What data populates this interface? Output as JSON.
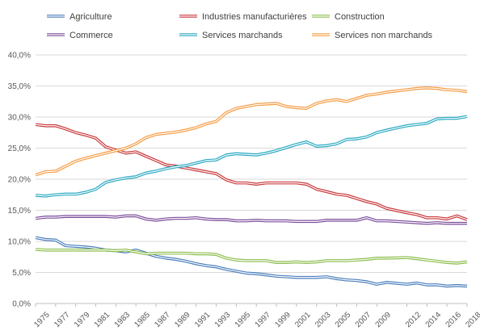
{
  "chart_data": {
    "type": "line",
    "title": "",
    "xlabel": "",
    "ylabel": "",
    "ylim": [
      0,
      40
    ],
    "y_ticks": [
      "0,0%",
      "5,0%",
      "10,0%",
      "15,0%",
      "20,0%",
      "25,0%",
      "30,0%",
      "35,0%",
      "40,0%"
    ],
    "x_tick_labels": [
      "1975",
      "1977",
      "1979",
      "1981",
      "1983",
      "1985",
      "1987",
      "1989",
      "1991",
      "1993",
      "1995",
      "1997",
      "1999",
      "2001",
      "2003",
      "2005",
      "2007",
      "2009",
      "2012",
      "2014",
      "2016",
      "2018"
    ],
    "grid": "horizontal",
    "legend_position": "top",
    "x": [
      "1975",
      "1976",
      "1977",
      "1978",
      "1979",
      "1980",
      "1981",
      "1982",
      "1983",
      "1984",
      "1985",
      "1986",
      "1987",
      "1988",
      "1989",
      "1990",
      "1991",
      "1992",
      "1993",
      "1994",
      "1995",
      "1996",
      "1997",
      "1998",
      "1999",
      "2000",
      "2001",
      "2002",
      "2003",
      "2004",
      "2005",
      "2006",
      "2007",
      "2008",
      "2009",
      "2010",
      "2012",
      "2013",
      "2014",
      "2015",
      "2016",
      "2017",
      "2018"
    ],
    "series": [
      {
        "name": "Agriculture",
        "color": "#4a7ebb",
        "values": [
          10.6,
          10.3,
          10.2,
          9.3,
          9.2,
          9.1,
          8.9,
          8.6,
          8.5,
          8.3,
          8.6,
          8.1,
          7.6,
          7.3,
          7.1,
          6.8,
          6.4,
          6.1,
          5.9,
          5.5,
          5.2,
          4.9,
          4.8,
          4.6,
          4.4,
          4.3,
          4.2,
          4.2,
          4.2,
          4.3,
          4.0,
          3.8,
          3.7,
          3.5,
          3.1,
          3.4,
          3.1,
          3.3,
          3.0,
          3.0,
          2.8,
          2.9,
          2.8
        ]
      },
      {
        "name": "Industries manufacturières",
        "color": "#c8373a",
        "values": [
          28.8,
          28.6,
          28.6,
          28.1,
          27.5,
          27.1,
          26.6,
          25.2,
          24.7,
          24.2,
          24.4,
          23.7,
          23.0,
          22.3,
          22.1,
          21.8,
          21.5,
          21.2,
          20.9,
          19.9,
          19.4,
          19.4,
          19.2,
          19.4,
          19.4,
          19.4,
          19.4,
          19.2,
          18.4,
          18.0,
          17.6,
          17.4,
          16.9,
          16.4,
          16.0,
          15.3,
          14.6,
          14.3,
          13.8,
          13.8,
          13.6,
          14.1,
          13.5
        ]
      },
      {
        "name": "Construction",
        "color": "#8dbd4c",
        "values": [
          8.7,
          8.6,
          8.6,
          8.6,
          8.6,
          8.6,
          8.6,
          8.6,
          8.5,
          8.6,
          8.3,
          8.0,
          8.1,
          8.1,
          8.1,
          8.1,
          8.0,
          8.0,
          7.9,
          7.3,
          7.0,
          6.9,
          6.9,
          6.9,
          6.6,
          6.6,
          6.7,
          6.6,
          6.7,
          6.9,
          6.9,
          6.9,
          7.0,
          7.1,
          7.3,
          7.3,
          7.4,
          7.2,
          7.0,
          6.8,
          6.6,
          6.5,
          6.7
        ]
      },
      {
        "name": "Commerce",
        "color": "#7b4b9a",
        "values": [
          13.7,
          13.9,
          13.9,
          14.0,
          14.0,
          14.0,
          14.0,
          14.0,
          13.9,
          14.1,
          14.1,
          13.6,
          13.4,
          13.6,
          13.7,
          13.7,
          13.8,
          13.6,
          13.5,
          13.5,
          13.3,
          13.3,
          13.4,
          13.3,
          13.3,
          13.3,
          13.2,
          13.2,
          13.2,
          13.4,
          13.4,
          13.4,
          13.4,
          13.8,
          13.3,
          13.3,
          13.1,
          13.0,
          12.9,
          13.0,
          12.9,
          12.9,
          12.9
        ]
      },
      {
        "name": "Services marchands",
        "color": "#2aa9c1",
        "values": [
          17.4,
          17.3,
          17.5,
          17.6,
          17.6,
          17.9,
          18.4,
          19.5,
          19.9,
          20.2,
          20.4,
          21.0,
          21.3,
          21.7,
          22.0,
          22.2,
          22.6,
          23.0,
          23.1,
          23.9,
          24.1,
          24.0,
          23.9,
          24.2,
          24.6,
          25.1,
          25.6,
          26.0,
          25.3,
          25.4,
          25.7,
          26.4,
          26.5,
          26.8,
          27.5,
          27.9,
          28.6,
          28.8,
          29.0,
          29.7,
          29.8,
          29.8,
          30.1
        ]
      },
      {
        "name": "Services non marchands",
        "color": "#f59b42",
        "values": [
          20.7,
          21.2,
          21.3,
          22.1,
          22.9,
          23.4,
          23.8,
          24.2,
          24.6,
          25.0,
          25.7,
          26.7,
          27.2,
          27.4,
          27.6,
          27.9,
          28.3,
          28.9,
          29.3,
          30.7,
          31.4,
          31.7,
          32.0,
          32.1,
          32.2,
          31.7,
          31.5,
          31.4,
          32.2,
          32.6,
          32.8,
          32.5,
          33.0,
          33.5,
          33.7,
          34.0,
          34.4,
          34.6,
          34.7,
          34.6,
          34.4,
          34.3,
          34.1
        ]
      }
    ]
  }
}
